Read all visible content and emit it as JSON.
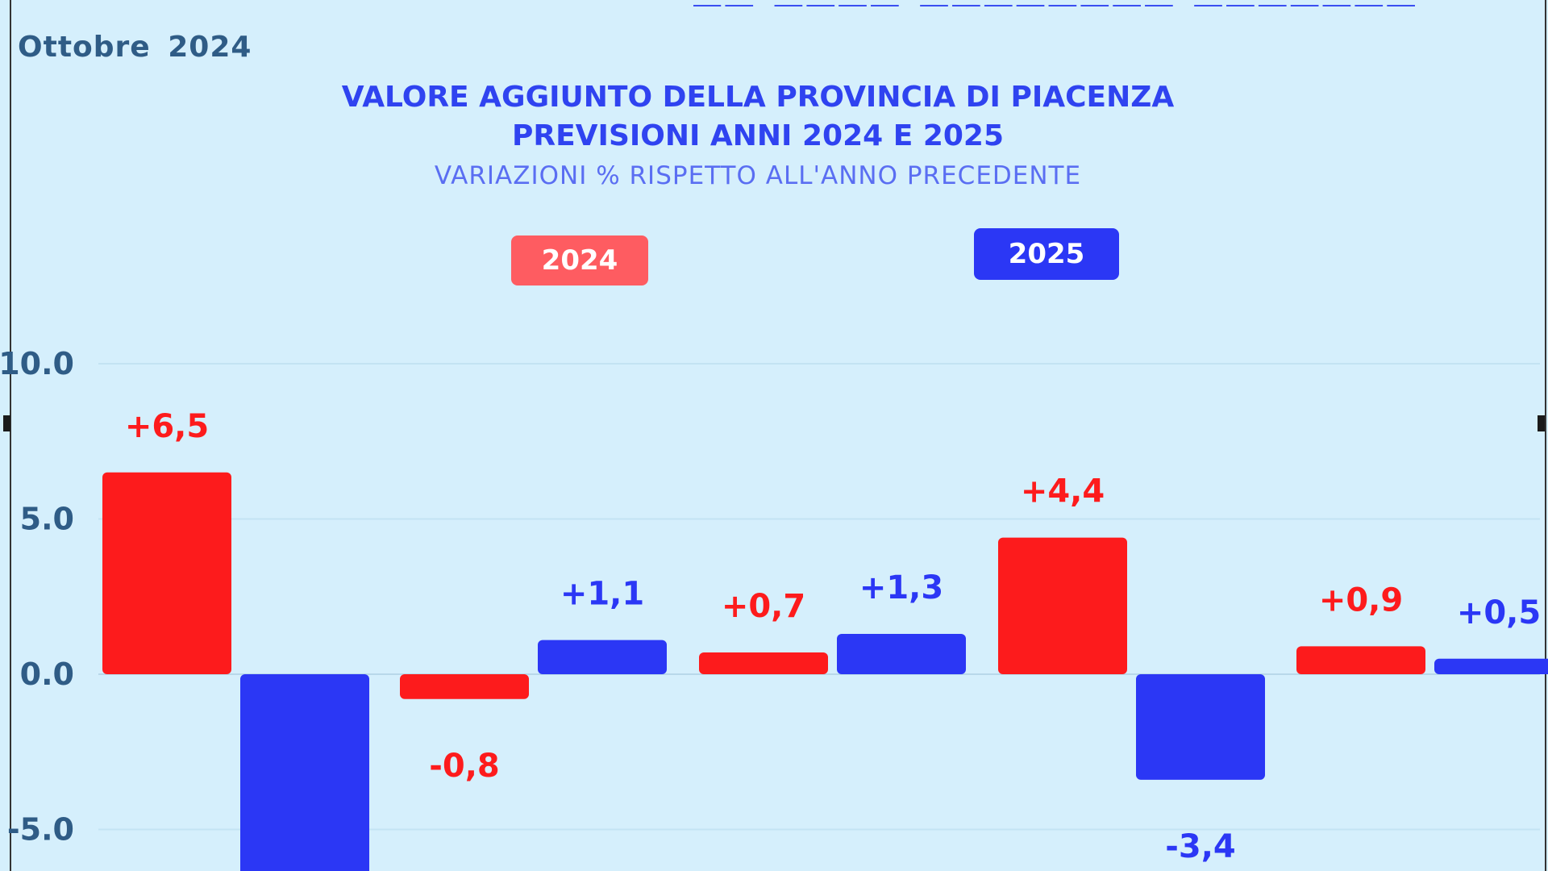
{
  "header": {
    "date": "Ottobre 2024"
  },
  "colors": {
    "series_2024": "#fd1b1c",
    "series_2025": "#2b37f5",
    "background": "#d5effc",
    "axis_text": "#2f5c86"
  },
  "chart_data": {
    "type": "bar",
    "title": "VALORE AGGIUNTO DELLA PROVINCIA DI PIACENZA",
    "title_line2": "PREVISIONI ANNI 2024 E 2025",
    "subtitle": "VARIAZIONI % RISPETTO ALL'ANNO PRECEDENTE",
    "xlabel": "",
    "ylabel": "",
    "ylim": [
      -5.0,
      10.0
    ],
    "yticks": [
      "10.0",
      "5.0",
      "0.0",
      "-5.0"
    ],
    "grid": true,
    "legend_position": "top",
    "series": [
      {
        "name": "2024",
        "values": [
          6.5,
          -0.8,
          0.7,
          4.4,
          0.9
        ],
        "labels": [
          "+6,5",
          "-0,8",
          "+0,7",
          "+4,4",
          "+0,9"
        ]
      },
      {
        "name": "2025",
        "values": [
          -7.0,
          1.1,
          1.3,
          -3.4,
          0.5
        ],
        "labels": [
          "",
          "+1,1",
          "+1,3",
          "-3,4",
          "+0,5"
        ]
      }
    ]
  }
}
